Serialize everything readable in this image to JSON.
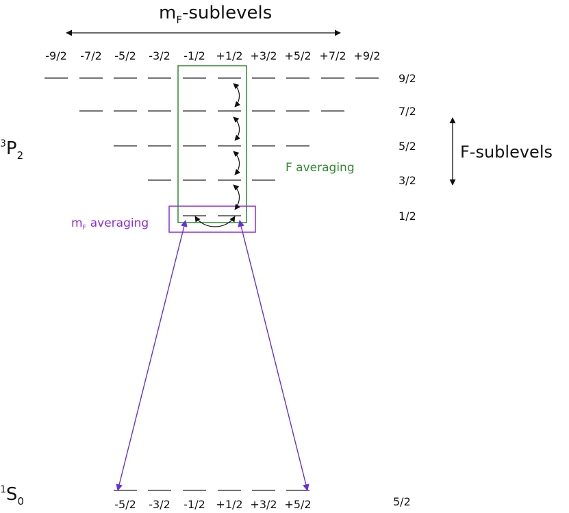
{
  "header": {
    "title_base": "m",
    "title_sub": "F",
    "title_rest": "-sublevels"
  },
  "mf_labels_top": [
    "-9/2",
    "-7/2",
    "-5/2",
    "-3/2",
    "-1/2",
    "+1/2",
    "+3/2",
    "+5/2",
    "+7/2",
    "+9/2"
  ],
  "mf_labels_bottom": [
    "-5/2",
    "-3/2",
    "-1/2",
    "+1/2",
    "+3/2",
    "+5/2"
  ],
  "upper_state": {
    "sup": "3",
    "letter": "P",
    "sub": "2",
    "levels": [
      {
        "F": "9/2",
        "n": 10
      },
      {
        "F": "7/2",
        "n": 8
      },
      {
        "F": "5/2",
        "n": 6
      },
      {
        "F": "3/2",
        "n": 4
      },
      {
        "F": "1/2",
        "n": 2
      }
    ]
  },
  "lower_state": {
    "sup": "1",
    "letter": "S",
    "sub": "0",
    "levels": [
      {
        "F": "5/2",
        "n": 6
      }
    ]
  },
  "f_sublevels_label": "F-sublevels",
  "f_averaging": {
    "label": "F averaging",
    "color": "#2e8b2e"
  },
  "mf_averaging": {
    "label_base": "m",
    "label_sub": "F",
    "label_rest": " averaging",
    "color": "#8a2be2"
  },
  "colors": {
    "level_line": "#222222",
    "arrow": "#111111",
    "transition": "#6a2de0"
  }
}
